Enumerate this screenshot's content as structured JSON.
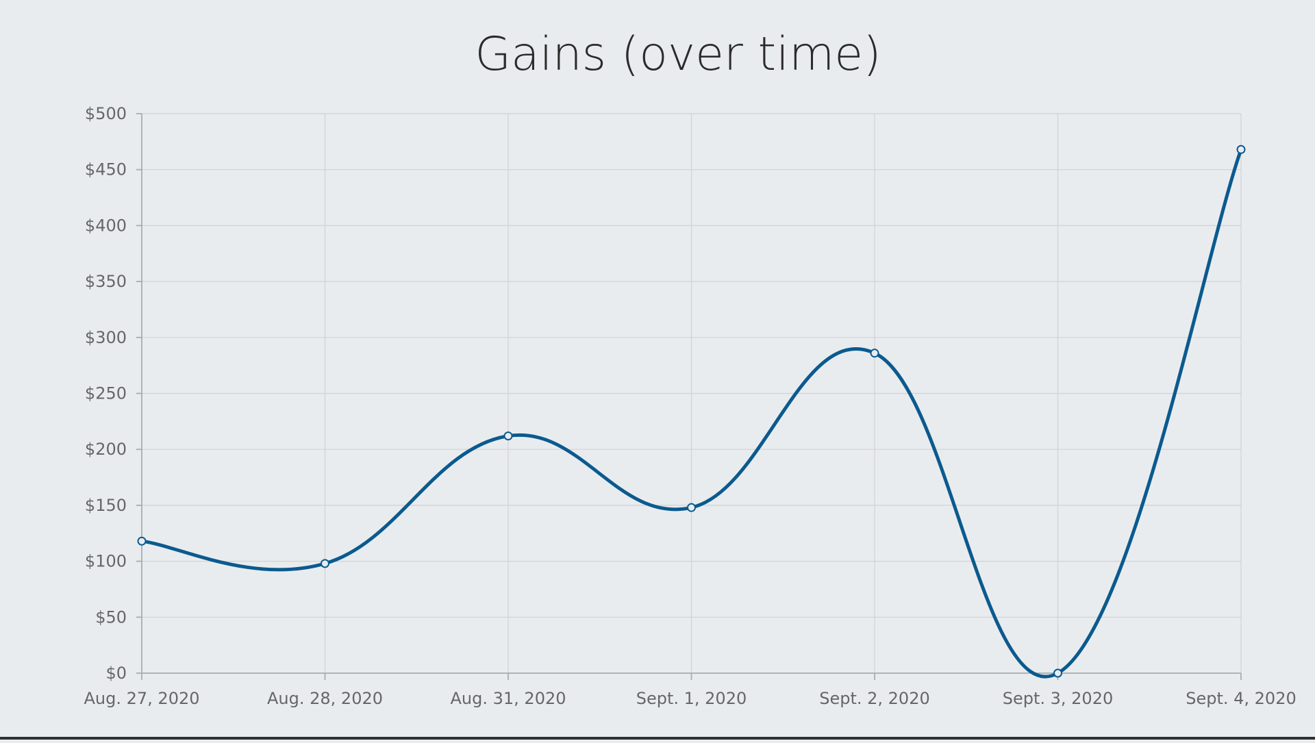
{
  "chart_data": {
    "type": "line",
    "title": "Gains (over time)",
    "xlabel": "",
    "ylabel": "",
    "categories": [
      "Aug. 27, 2020",
      "Aug. 28, 2020",
      "Aug. 31, 2020",
      "Sept. 1, 2020",
      "Sept. 2, 2020",
      "Sept. 3, 2020",
      "Sept. 4, 2020"
    ],
    "y_ticks": [
      "$0",
      "$50",
      "$100",
      "$150",
      "$200",
      "$250",
      "$300",
      "$350",
      "$400",
      "$450",
      "$500"
    ],
    "ylim": [
      0,
      500
    ],
    "grid": true,
    "legend": "none",
    "series": [
      {
        "values": [
          118,
          98,
          212,
          148,
          286,
          0,
          468
        ],
        "color": "#0b5a8e"
      }
    ]
  }
}
